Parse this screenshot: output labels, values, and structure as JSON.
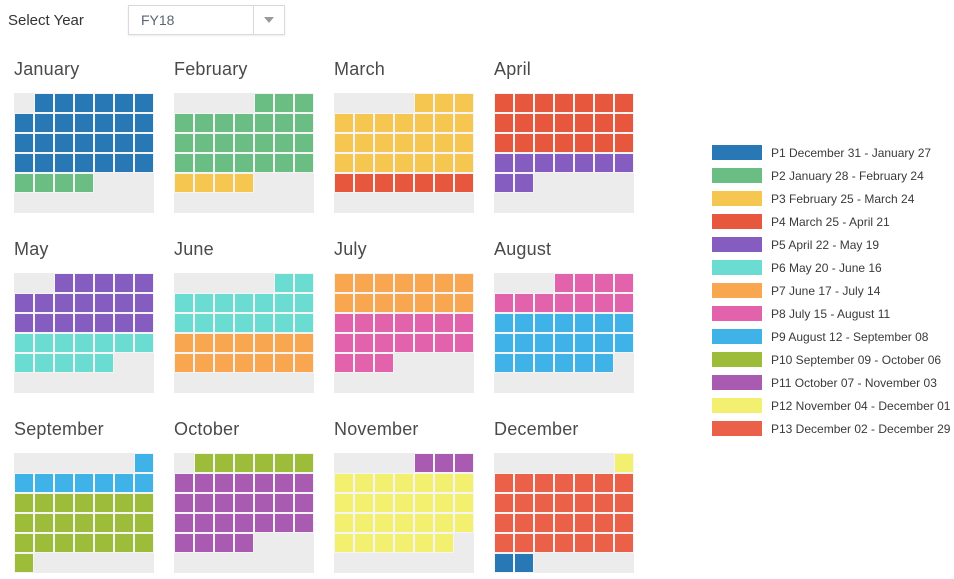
{
  "header": {
    "select_year_label": "Select Year",
    "year_dropdown": {
      "value": "FY18"
    }
  },
  "icons": {
    "year_dropdown_arrow": "chevron-down"
  },
  "colors": {
    "page_background": "#ffffff",
    "month_panel_background": "#ececec",
    "month_title_text": "#4a4a4a",
    "legend_text": "#3a3a3a"
  },
  "chart_data": {
    "type": "heatmap",
    "title": "",
    "fiscal_year": "FY18",
    "week_start": "Sunday",
    "columns_per_month": 7,
    "rows_per_month": 6,
    "legend_position": "right",
    "periods": [
      {
        "id": "P1",
        "label": "P1 December 31 - January 27",
        "start": "December 31",
        "end": "January 27",
        "color": "#2878b5"
      },
      {
        "id": "P2",
        "label": "P2 January 28 - February 24",
        "start": "January 28",
        "end": "February 24",
        "color": "#6abe83"
      },
      {
        "id": "P3",
        "label": "P3 February 25 - March 24",
        "start": "February 25",
        "end": "March 24",
        "color": "#f6c750"
      },
      {
        "id": "P4",
        "label": "P4 March 25 - April 21",
        "start": "March 25",
        "end": "April 21",
        "color": "#e7573e"
      },
      {
        "id": "P5",
        "label": "P5 April 22 - May 19",
        "start": "April 22",
        "end": "May 19",
        "color": "#855cc0"
      },
      {
        "id": "P6",
        "label": "P6 May 20 - June 16",
        "start": "May 20",
        "end": "June 16",
        "color": "#6adcd2"
      },
      {
        "id": "P7",
        "label": "P7 June 17 - July 14",
        "start": "June 17",
        "end": "July 14",
        "color": "#f8a64f"
      },
      {
        "id": "P8",
        "label": "P8 July 15 - August 11",
        "start": "July 15",
        "end": "August 11",
        "color": "#e263ac"
      },
      {
        "id": "P9",
        "label": "P9 August 12 - September 08",
        "start": "August 12",
        "end": "September 08",
        "color": "#3fb3e8"
      },
      {
        "id": "P10",
        "label": "P10 September 09 - October 06",
        "start": "September 09",
        "end": "October 06",
        "color": "#9cbc3a"
      },
      {
        "id": "P11",
        "label": "P11 October 07 - November 03",
        "start": "October 07",
        "end": "November 03",
        "color": "#a95bb2"
      },
      {
        "id": "P12",
        "label": "P12 November 04 - December 01",
        "start": "November 04",
        "end": "December 01",
        "color": "#f2f06e"
      },
      {
        "id": "P13",
        "label": "P13 December 02 - December 29",
        "start": "December 02",
        "end": "December 29",
        "color": "#ea6048"
      }
    ],
    "months": [
      {
        "name": "January",
        "cells": [
          "",
          "P1",
          "P1",
          "P1",
          "P1",
          "P1",
          "P1",
          "P1",
          "P1",
          "P1",
          "P1",
          "P1",
          "P1",
          "P1",
          "P1",
          "P1",
          "P1",
          "P1",
          "P1",
          "P1",
          "P1",
          "P1",
          "P1",
          "P1",
          "P1",
          "P1",
          "P1",
          "P1",
          "P2",
          "P2",
          "P2",
          "P2",
          "",
          "",
          "",
          "",
          "",
          "",
          "",
          "",
          "",
          ""
        ]
      },
      {
        "name": "February",
        "cells": [
          "",
          "",
          "",
          "",
          "P2",
          "P2",
          "P2",
          "P2",
          "P2",
          "P2",
          "P2",
          "P2",
          "P2",
          "P2",
          "P2",
          "P2",
          "P2",
          "P2",
          "P2",
          "P2",
          "P2",
          "P2",
          "P2",
          "P2",
          "P2",
          "P2",
          "P2",
          "P2",
          "P3",
          "P3",
          "P3",
          "P3",
          "",
          "",
          "",
          "",
          "",
          "",
          "",
          "",
          "",
          ""
        ]
      },
      {
        "name": "March",
        "cells": [
          "",
          "",
          "",
          "",
          "P3",
          "P3",
          "P3",
          "P3",
          "P3",
          "P3",
          "P3",
          "P3",
          "P3",
          "P3",
          "P3",
          "P3",
          "P3",
          "P3",
          "P3",
          "P3",
          "P3",
          "P3",
          "P3",
          "P3",
          "P3",
          "P3",
          "P3",
          "P3",
          "P4",
          "P4",
          "P4",
          "P4",
          "P4",
          "P4",
          "P4",
          "",
          "",
          "",
          "",
          "",
          "",
          ""
        ]
      },
      {
        "name": "April",
        "cells": [
          "P4",
          "P4",
          "P4",
          "P4",
          "P4",
          "P4",
          "P4",
          "P4",
          "P4",
          "P4",
          "P4",
          "P4",
          "P4",
          "P4",
          "P4",
          "P4",
          "P4",
          "P4",
          "P4",
          "P4",
          "P4",
          "P5",
          "P5",
          "P5",
          "P5",
          "P5",
          "P5",
          "P5",
          "P5",
          "P5",
          "",
          "",
          "",
          "",
          "",
          "",
          "",
          "",
          "",
          "",
          "",
          ""
        ]
      },
      {
        "name": "May",
        "cells": [
          "",
          "",
          "P5",
          "P5",
          "P5",
          "P5",
          "P5",
          "P5",
          "P5",
          "P5",
          "P5",
          "P5",
          "P5",
          "P5",
          "P5",
          "P5",
          "P5",
          "P5",
          "P5",
          "P5",
          "P5",
          "P6",
          "P6",
          "P6",
          "P6",
          "P6",
          "P6",
          "P6",
          "P6",
          "P6",
          "P6",
          "P6",
          "P6",
          "",
          "",
          "",
          "",
          "",
          "",
          "",
          "",
          ""
        ]
      },
      {
        "name": "June",
        "cells": [
          "",
          "",
          "",
          "",
          "",
          "P6",
          "P6",
          "P6",
          "P6",
          "P6",
          "P6",
          "P6",
          "P6",
          "P6",
          "P6",
          "P6",
          "P6",
          "P6",
          "P6",
          "P6",
          "P6",
          "P7",
          "P7",
          "P7",
          "P7",
          "P7",
          "P7",
          "P7",
          "P7",
          "P7",
          "P7",
          "P7",
          "P7",
          "P7",
          "P7",
          "",
          "",
          "",
          "",
          "",
          "",
          ""
        ]
      },
      {
        "name": "July",
        "cells": [
          "P7",
          "P7",
          "P7",
          "P7",
          "P7",
          "P7",
          "P7",
          "P7",
          "P7",
          "P7",
          "P7",
          "P7",
          "P7",
          "P7",
          "P8",
          "P8",
          "P8",
          "P8",
          "P8",
          "P8",
          "P8",
          "P8",
          "P8",
          "P8",
          "P8",
          "P8",
          "P8",
          "P8",
          "P8",
          "P8",
          "P8",
          "",
          "",
          "",
          "",
          "",
          "",
          "",
          "",
          "",
          "",
          ""
        ]
      },
      {
        "name": "August",
        "cells": [
          "",
          "",
          "",
          "P8",
          "P8",
          "P8",
          "P8",
          "P8",
          "P8",
          "P8",
          "P8",
          "P8",
          "P8",
          "P8",
          "P9",
          "P9",
          "P9",
          "P9",
          "P9",
          "P9",
          "P9",
          "P9",
          "P9",
          "P9",
          "P9",
          "P9",
          "P9",
          "P9",
          "P9",
          "P9",
          "P9",
          "P9",
          "P9",
          "P9",
          "",
          "",
          "",
          "",
          "",
          "",
          "",
          ""
        ]
      },
      {
        "name": "September",
        "cells": [
          "",
          "",
          "",
          "",
          "",
          "",
          "P9",
          "P9",
          "P9",
          "P9",
          "P9",
          "P9",
          "P9",
          "P9",
          "P10",
          "P10",
          "P10",
          "P10",
          "P10",
          "P10",
          "P10",
          "P10",
          "P10",
          "P10",
          "P10",
          "P10",
          "P10",
          "P10",
          "P10",
          "P10",
          "P10",
          "P10",
          "P10",
          "P10",
          "P10",
          "P10",
          "",
          "",
          "",
          "",
          "",
          ""
        ]
      },
      {
        "name": "October",
        "cells": [
          "",
          "P10",
          "P10",
          "P10",
          "P10",
          "P10",
          "P10",
          "P11",
          "P11",
          "P11",
          "P11",
          "P11",
          "P11",
          "P11",
          "P11",
          "P11",
          "P11",
          "P11",
          "P11",
          "P11",
          "P11",
          "P11",
          "P11",
          "P11",
          "P11",
          "P11",
          "P11",
          "P11",
          "P11",
          "P11",
          "P11",
          "P11",
          "",
          "",
          "",
          "",
          "",
          "",
          "",
          "",
          "",
          ""
        ]
      },
      {
        "name": "November",
        "cells": [
          "",
          "",
          "",
          "",
          "P11",
          "P11",
          "P11",
          "P12",
          "P12",
          "P12",
          "P12",
          "P12",
          "P12",
          "P12",
          "P12",
          "P12",
          "P12",
          "P12",
          "P12",
          "P12",
          "P12",
          "P12",
          "P12",
          "P12",
          "P12",
          "P12",
          "P12",
          "P12",
          "P12",
          "P12",
          "P12",
          "P12",
          "P12",
          "P12",
          "",
          "",
          "",
          "",
          "",
          "",
          "",
          ""
        ]
      },
      {
        "name": "December",
        "cells": [
          "",
          "",
          "",
          "",
          "",
          "",
          "P12",
          "P13",
          "P13",
          "P13",
          "P13",
          "P13",
          "P13",
          "P13",
          "P13",
          "P13",
          "P13",
          "P13",
          "P13",
          "P13",
          "P13",
          "P13",
          "P13",
          "P13",
          "P13",
          "P13",
          "P13",
          "P13",
          "P13",
          "P13",
          "P13",
          "P13",
          "P13",
          "P13",
          "P13",
          "P1",
          "P1",
          "",
          "",
          "",
          "",
          ""
        ]
      }
    ]
  }
}
